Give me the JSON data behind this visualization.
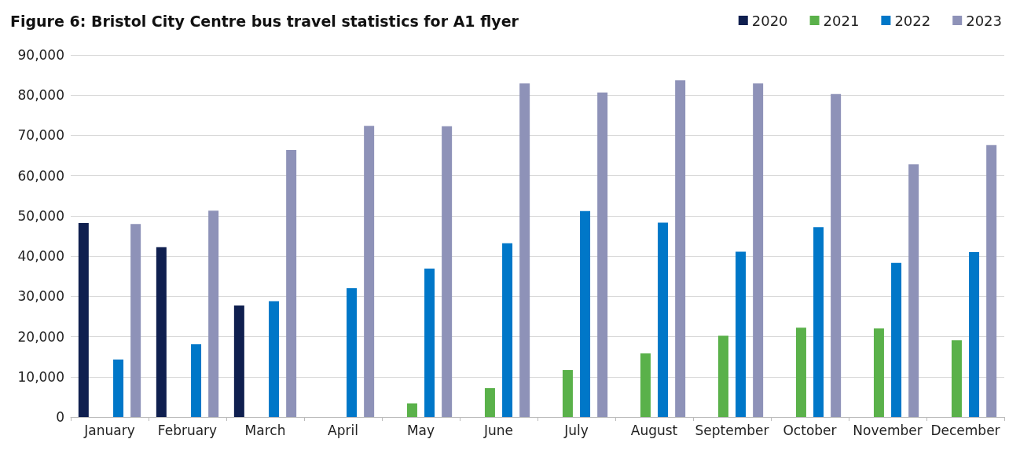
{
  "chart_data": {
    "type": "bar",
    "title": "Figure 6: Bristol City Centre bus travel statistics for A1 flyer",
    "categories": [
      "January",
      "February",
      "March",
      "April",
      "May",
      "June",
      "July",
      "August",
      "September",
      "October",
      "November",
      "December"
    ],
    "series": [
      {
        "name": "2020",
        "color": "#0f1f4f",
        "values": [
          48200,
          42200,
          27700,
          null,
          null,
          null,
          null,
          null,
          null,
          null,
          null,
          null
        ]
      },
      {
        "name": "2021",
        "color": "#5ab14a",
        "values": [
          null,
          null,
          null,
          null,
          3400,
          7200,
          11700,
          15800,
          20200,
          22200,
          22000,
          19100
        ]
      },
      {
        "name": "2022",
        "color": "#0077c8",
        "values": [
          14300,
          18100,
          28800,
          32000,
          36900,
          43200,
          51200,
          48300,
          41100,
          47200,
          38300,
          41000
        ]
      },
      {
        "name": "2023",
        "color": "#8e92b8",
        "values": [
          48000,
          51300,
          66400,
          72400,
          72300,
          82900,
          80700,
          83700,
          82900,
          80300,
          62800,
          67600
        ]
      }
    ],
    "ylim": [
      0,
      90000
    ],
    "yticks": [
      0,
      {
        "value": 10000,
        "label": "10,000"
      },
      {
        "value": 20000,
        "label": "20,000"
      },
      {
        "value": 30000,
        "label": "30,000"
      },
      {
        "value": 40000,
        "label": "40,000"
      },
      {
        "value": 50000,
        "label": "50,000"
      },
      {
        "value": 60000,
        "label": "60,000"
      },
      {
        "value": 70000,
        "label": "70,000"
      },
      {
        "value": 80000,
        "label": "80,000"
      },
      {
        "value": 90000,
        "label": "90,000"
      }
    ],
    "grid": "y",
    "legend": "top right"
  }
}
